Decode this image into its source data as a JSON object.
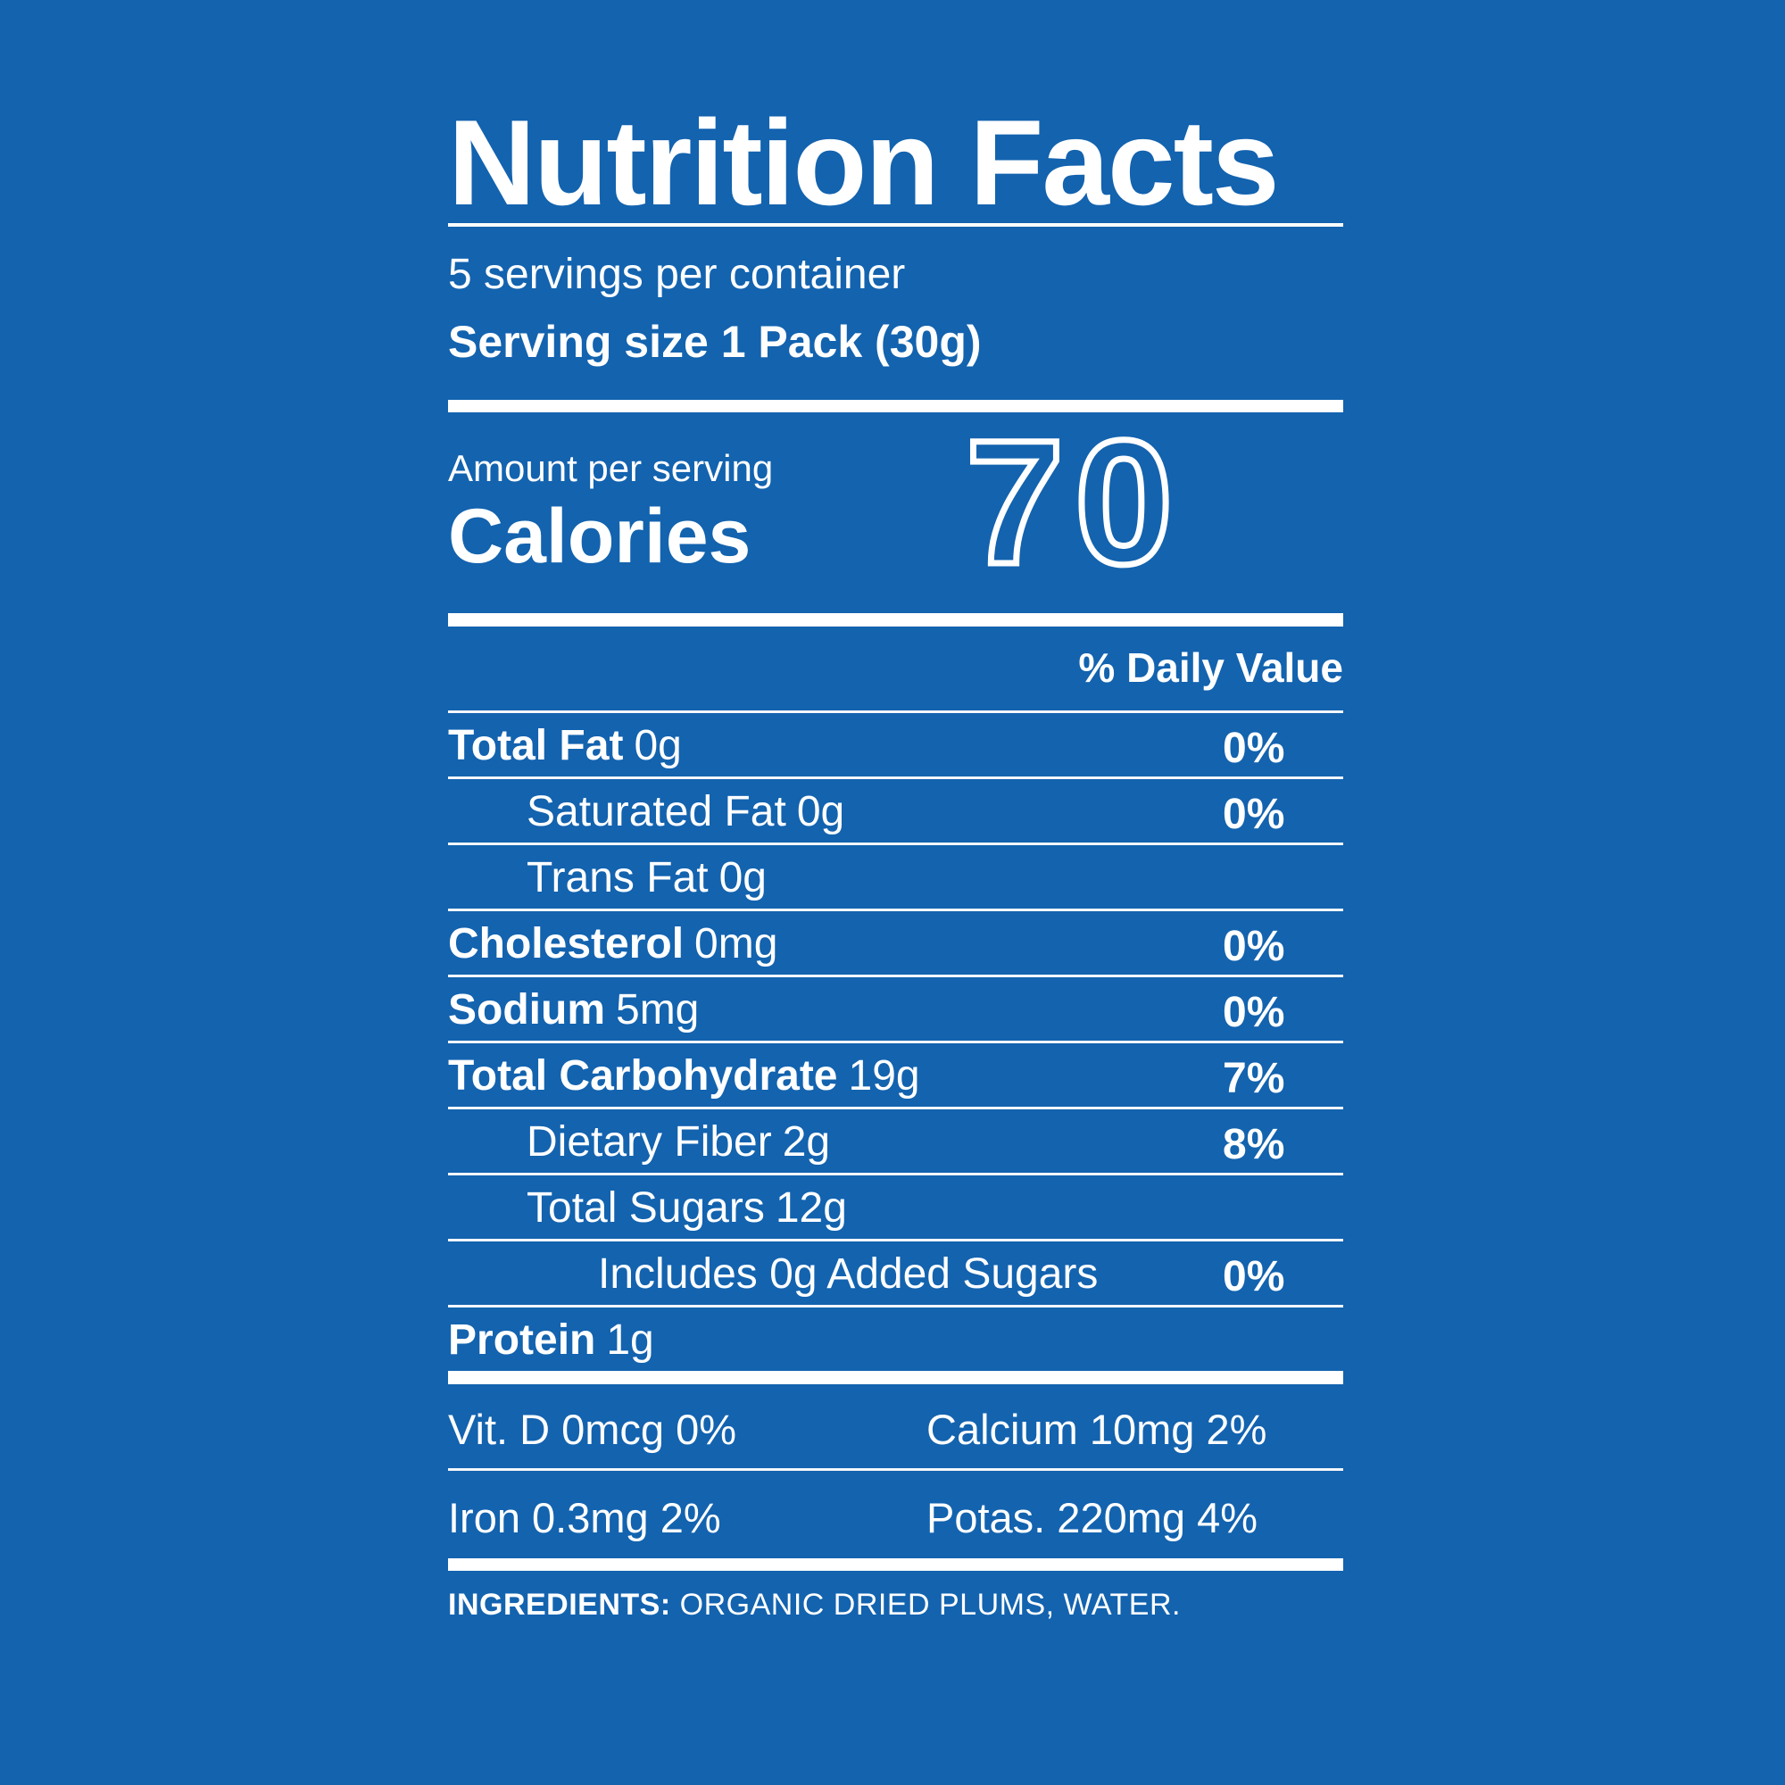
{
  "colors": {
    "background": "#1363af",
    "text": "#ffffff"
  },
  "label": {
    "title": "Nutrition Facts",
    "servings_per_container": "5 servings per container",
    "serving_size": "Serving size 1 Pack (30g)",
    "amount_per_serving": "Amount per serving",
    "calories_label": "Calories",
    "calories_value": "70",
    "daily_value_header": "% Daily Value",
    "rows": [
      {
        "name": "Total Fat",
        "amount": "0g",
        "dv": "0%"
      },
      {
        "name": "Saturated Fat",
        "amount": "0g",
        "dv": "0%"
      },
      {
        "name": "Trans Fat",
        "amount": "0g",
        "dv": ""
      },
      {
        "name": "Cholesterol",
        "amount": "0mg",
        "dv": "0%"
      },
      {
        "name": "Sodium",
        "amount": "5mg",
        "dv": "0%"
      },
      {
        "name": "Total Carbohydrate",
        "amount": "19g",
        "dv": "7%"
      },
      {
        "name": "Dietary Fiber",
        "amount": "2g",
        "dv": "8%"
      },
      {
        "name": "Total Sugars",
        "amount": "12g",
        "dv": ""
      },
      {
        "name": "Includes 0g Added Sugars",
        "amount": "",
        "dv": "0%"
      },
      {
        "name": "Protein",
        "amount": "1g",
        "dv": ""
      }
    ],
    "micronutrients": [
      {
        "left": "Vit. D 0mcg 0%",
        "right": "Calcium 10mg 2%"
      },
      {
        "left": "Iron 0.3mg 2%",
        "right": "Potas. 220mg 4%"
      }
    ],
    "ingredients_label": "INGREDIENTS:",
    "ingredients": "ORGANIC DRIED PLUMS, WATER."
  }
}
